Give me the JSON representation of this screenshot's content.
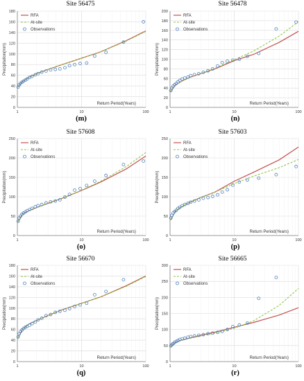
{
  "figure": {
    "legend_labels": [
      "RFA",
      "At-site",
      "Observations"
    ],
    "colors": {
      "rfa": "#c0504d",
      "atsite": "#8fc646",
      "obs": "#4f81bd"
    }
  },
  "chart_data": [
    {
      "type": "line",
      "site": "Site 56475",
      "panel": "(m)",
      "ylabel": "Precipitation(mm)",
      "xlabel": "Return Period(Years)",
      "xscale": "log",
      "xlim": [
        1,
        100
      ],
      "ylim": [
        0,
        180
      ],
      "yticks": [
        0,
        20,
        40,
        60,
        80,
        100,
        120,
        140,
        160,
        180
      ],
      "xticks": [
        1,
        10,
        100
      ],
      "legend": "top-left",
      "series": [
        {
          "name": "RFA",
          "x": [
            1.02,
            1.2,
            1.5,
            2,
            3,
            5,
            10,
            20,
            50,
            100
          ],
          "y": [
            38,
            48,
            56,
            63,
            71,
            80,
            92,
            104,
            125,
            143
          ]
        },
        {
          "name": "At-site",
          "x": [
            1.02,
            1.2,
            1.5,
            2,
            3,
            5,
            10,
            20,
            50,
            100
          ],
          "y": [
            38,
            48,
            56,
            63,
            71,
            80,
            92,
            104,
            124,
            142
          ]
        },
        {
          "name": "Observations",
          "x": [
            1.03,
            1.07,
            1.12,
            1.18,
            1.25,
            1.33,
            1.42,
            1.55,
            1.7,
            1.9,
            2.1,
            2.4,
            2.8,
            3.3,
            3.9,
            4.6,
            5.5,
            6.5,
            7.8,
            9.5,
            12,
            16,
            24,
            45
          ],
          "y": [
            38,
            42,
            45,
            47,
            49,
            51,
            53,
            56,
            58,
            61,
            63,
            66,
            68,
            70,
            71,
            72,
            74,
            78,
            80,
            82,
            83,
            96,
            103,
            122
          ]
        },
        {
          "name": "Observations",
          "x": [
            92
          ],
          "y": [
            160
          ]
        }
      ]
    },
    {
      "type": "line",
      "site": "Site 56478",
      "panel": "(n)",
      "ylabel": "Precipitation(mm)",
      "xlabel": "Return Period(Years)",
      "xscale": "log",
      "xlim": [
        1,
        100
      ],
      "ylim": [
        0,
        200
      ],
      "yticks": [
        0,
        20,
        40,
        60,
        80,
        100,
        120,
        140,
        160,
        180,
        200
      ],
      "xticks": [
        1,
        10,
        100
      ],
      "legend": "top-left",
      "series": [
        {
          "name": "RFA",
          "x": [
            1.02,
            1.2,
            1.5,
            2,
            3,
            5,
            10,
            20,
            50,
            100
          ],
          "y": [
            33,
            46,
            54,
            62,
            70,
            80,
            97,
            110,
            135,
            158
          ]
        },
        {
          "name": "At-site",
          "x": [
            1.02,
            1.2,
            1.5,
            2,
            3,
            5,
            10,
            20,
            50,
            100
          ],
          "y": [
            33,
            46,
            54,
            62,
            70,
            81,
            99,
            117,
            148,
            178
          ]
        },
        {
          "name": "Observations",
          "x": [
            1.03,
            1.07,
            1.12,
            1.18,
            1.25,
            1.33,
            1.42,
            1.55,
            1.7,
            1.9,
            2.1,
            2.4,
            2.8,
            3.3,
            3.9,
            4.6,
            5.5,
            6.5,
            7.8,
            9.5,
            12,
            16,
            24,
            45,
            92
          ],
          "y": [
            35,
            40,
            44,
            47,
            50,
            53,
            56,
            59,
            61,
            63,
            66,
            68,
            70,
            73,
            76,
            80,
            86,
            93,
            96,
            98,
            100,
            106,
            112,
            163,
            177
          ]
        }
      ]
    },
    {
      "type": "line",
      "site": "Site 57608",
      "panel": "(o)",
      "ylabel": "Precipitation(mm)",
      "xlabel": "Return Period(Years)",
      "xscale": "log",
      "xlim": [
        1,
        100
      ],
      "ylim": [
        0,
        250
      ],
      "yticks": [
        0,
        50,
        100,
        150,
        200,
        250
      ],
      "xticks": [
        1,
        10,
        100
      ],
      "legend": "top-left",
      "series": [
        {
          "name": "RFA",
          "x": [
            1.02,
            1.2,
            1.5,
            2,
            3,
            5,
            10,
            20,
            50,
            100
          ],
          "y": [
            35,
            55,
            64,
            72,
            83,
            96,
            116,
            138,
            172,
            205
          ]
        },
        {
          "name": "At-site",
          "x": [
            1.02,
            1.2,
            1.5,
            2,
            3,
            5,
            10,
            20,
            50,
            100
          ],
          "y": [
            35,
            55,
            64,
            72,
            83,
            96,
            117,
            140,
            178,
            214
          ]
        },
        {
          "name": "Observations",
          "x": [
            1.03,
            1.07,
            1.12,
            1.18,
            1.25,
            1.33,
            1.42,
            1.55,
            1.7,
            1.9,
            2.1,
            2.4,
            2.8,
            3.3,
            3.9,
            4.6,
            5.5,
            6.5,
            7.8,
            9.5,
            12,
            16,
            24,
            45,
            92
          ],
          "y": [
            37,
            45,
            50,
            55,
            58,
            61,
            64,
            67,
            70,
            74,
            77,
            80,
            84,
            87,
            89,
            92,
            99,
            106,
            117,
            121,
            129,
            140,
            155,
            183,
            192
          ]
        }
      ]
    },
    {
      "type": "line",
      "site": "Site 57603",
      "panel": "(p)",
      "ylabel": "Precipitation(mm)",
      "xlabel": "Return Period(Years)",
      "xscale": "log",
      "xlim": [
        1,
        100
      ],
      "ylim": [
        0,
        250
      ],
      "yticks": [
        0,
        50,
        100,
        150,
        200,
        250
      ],
      "xticks": [
        1,
        10,
        100
      ],
      "legend": "top-left",
      "series": [
        {
          "name": "RFA",
          "x": [
            1.02,
            1.2,
            1.5,
            2,
            3,
            5,
            10,
            20,
            50,
            100
          ],
          "y": [
            40,
            62,
            74,
            85,
            98,
            112,
            140,
            163,
            195,
            228
          ]
        },
        {
          "name": "At-site",
          "x": [
            1.02,
            1.2,
            1.5,
            2,
            3,
            5,
            10,
            20,
            50,
            100
          ],
          "y": [
            40,
            62,
            74,
            85,
            98,
            112,
            134,
            153,
            175,
            196
          ]
        },
        {
          "name": "Observations",
          "x": [
            1.03,
            1.07,
            1.12,
            1.18,
            1.25,
            1.33,
            1.42,
            1.55,
            1.7,
            1.9,
            2.1,
            2.4,
            2.8,
            3.3,
            3.9,
            4.6,
            5.5,
            6.5,
            7.8,
            9.5,
            12,
            16,
            24,
            45,
            92
          ],
          "y": [
            45,
            52,
            58,
            62,
            65,
            70,
            73,
            77,
            80,
            83,
            86,
            89,
            92,
            96,
            98,
            101,
            105,
            112,
            118,
            130,
            138,
            143,
            148,
            157,
            178
          ]
        }
      ]
    },
    {
      "type": "line",
      "site": "Site 56670",
      "panel": "(q)",
      "ylabel": "Precipitation(mm)",
      "xlabel": "Return Period(Years)",
      "xscale": "log",
      "xlim": [
        1,
        100
      ],
      "ylim": [
        0,
        180
      ],
      "yticks": [
        0,
        20,
        40,
        60,
        80,
        100,
        120,
        140,
        160,
        180
      ],
      "xticks": [
        1,
        10,
        100
      ],
      "legend": "top-left",
      "series": [
        {
          "name": "RFA",
          "x": [
            1.02,
            1.2,
            1.5,
            2,
            3,
            5,
            10,
            20,
            50,
            100
          ],
          "y": [
            44,
            60,
            70,
            77,
            86,
            97,
            109,
            121,
            142,
            160
          ]
        },
        {
          "name": "At-site",
          "x": [
            1.02,
            1.2,
            1.5,
            2,
            3,
            5,
            10,
            20,
            50,
            100
          ],
          "y": [
            44,
            60,
            70,
            77,
            86,
            97,
            109,
            121,
            141,
            159
          ]
        },
        {
          "name": "Observations",
          "x": [
            1.03,
            1.07,
            1.12,
            1.18,
            1.25,
            1.33,
            1.42,
            1.55,
            1.7,
            1.9,
            2.1,
            2.4,
            2.8,
            3.3,
            3.9,
            4.6,
            5.5,
            6.5,
            7.8,
            9.5,
            12,
            16,
            24,
            45
          ],
          "y": [
            46,
            52,
            56,
            59,
            62,
            64,
            66,
            68,
            71,
            74,
            78,
            81,
            86,
            88,
            92,
            94,
            96,
            99,
            103,
            106,
            109,
            125,
            131,
            153
          ]
        }
      ]
    },
    {
      "type": "line",
      "site": "Site 56665",
      "panel": "(r)",
      "ylabel": "Precipitation(mm)",
      "xlabel": "Return Period(Years)",
      "xscale": "log",
      "xlim": [
        1,
        100
      ],
      "ylim": [
        0,
        300
      ],
      "yticks": [
        0,
        50,
        100,
        150,
        200,
        250,
        300
      ],
      "xticks": [
        1,
        10,
        100
      ],
      "legend": "top-left",
      "series": [
        {
          "name": "RFA",
          "x": [
            1.02,
            1.2,
            1.5,
            2,
            3,
            5,
            10,
            20,
            50,
            100
          ],
          "y": [
            46,
            59,
            67,
            73,
            82,
            92,
            107,
            122,
            145,
            168
          ]
        },
        {
          "name": "At-site",
          "x": [
            1.02,
            1.2,
            1.5,
            2,
            3,
            5,
            10,
            20,
            50,
            100
          ],
          "y": [
            46,
            58,
            66,
            72,
            80,
            89,
            104,
            127,
            175,
            228
          ]
        },
        {
          "name": "Observations",
          "x": [
            1.03,
            1.07,
            1.12,
            1.18,
            1.25,
            1.33,
            1.42,
            1.55,
            1.7,
            1.9,
            2.1,
            2.4,
            2.8,
            3.3,
            3.9,
            4.6,
            5.5,
            6.5,
            7.8,
            9.5,
            12,
            16,
            24,
            45
          ],
          "y": [
            49,
            53,
            56,
            60,
            63,
            66,
            69,
            71,
            73,
            76,
            78,
            80,
            82,
            84,
            87,
            89,
            91,
            94,
            100,
            109,
            114,
            120,
            197,
            262
          ]
        }
      ]
    }
  ]
}
